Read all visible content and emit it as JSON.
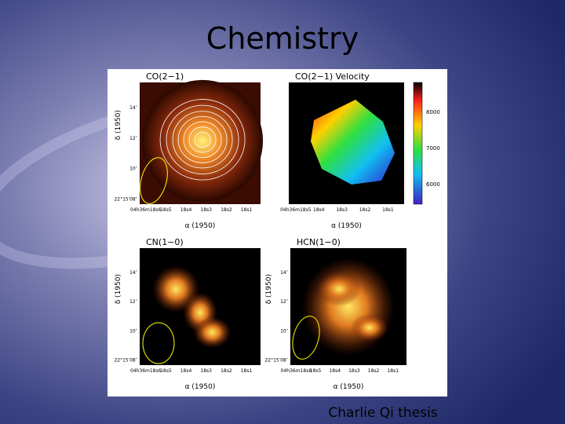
{
  "title": "Chemistry",
  "footer": "Charlie Qi thesis",
  "panels": [
    {
      "label": "CO(2−1)",
      "y_axis_label": "δ (1950)",
      "x_axis_label": "α (1950)",
      "y_ticks": [
        "14″",
        "12″",
        "10″",
        "22°15′08″"
      ],
      "x_ticks": [
        "04h36m18s6",
        "18s5",
        "18s4",
        "18s3",
        "18s2",
        "18s1"
      ]
    },
    {
      "label": "CO(2−1) Velocity",
      "x_axis_label": "α (1950)",
      "x_ticks": [
        "04h36m18s5",
        "18s4",
        "18s3",
        "18s2",
        "18s1"
      ]
    },
    {
      "label": "CN(1−0)",
      "y_axis_label": "δ (1950)",
      "x_axis_label": "α (1950)",
      "y_ticks": [
        "14″",
        "12″",
        "10″",
        "22°15′08″"
      ],
      "x_ticks": [
        "04h36m18s6",
        "18s5",
        "18s4",
        "18s3",
        "18s2",
        "18s1"
      ]
    },
    {
      "label": "HCN(1−0)",
      "y_axis_label": "δ (1950)",
      "x_axis_label": "α (1950)",
      "y_ticks": [
        "14″",
        "12″",
        "10″",
        "22°15′08″"
      ],
      "x_ticks": [
        "04h36m18s6",
        "18s5",
        "18s4",
        "18s3",
        "18s2",
        "18s1"
      ]
    }
  ],
  "colorbar": {
    "ticks": [
      "8000",
      "7000",
      "6000"
    ]
  }
}
